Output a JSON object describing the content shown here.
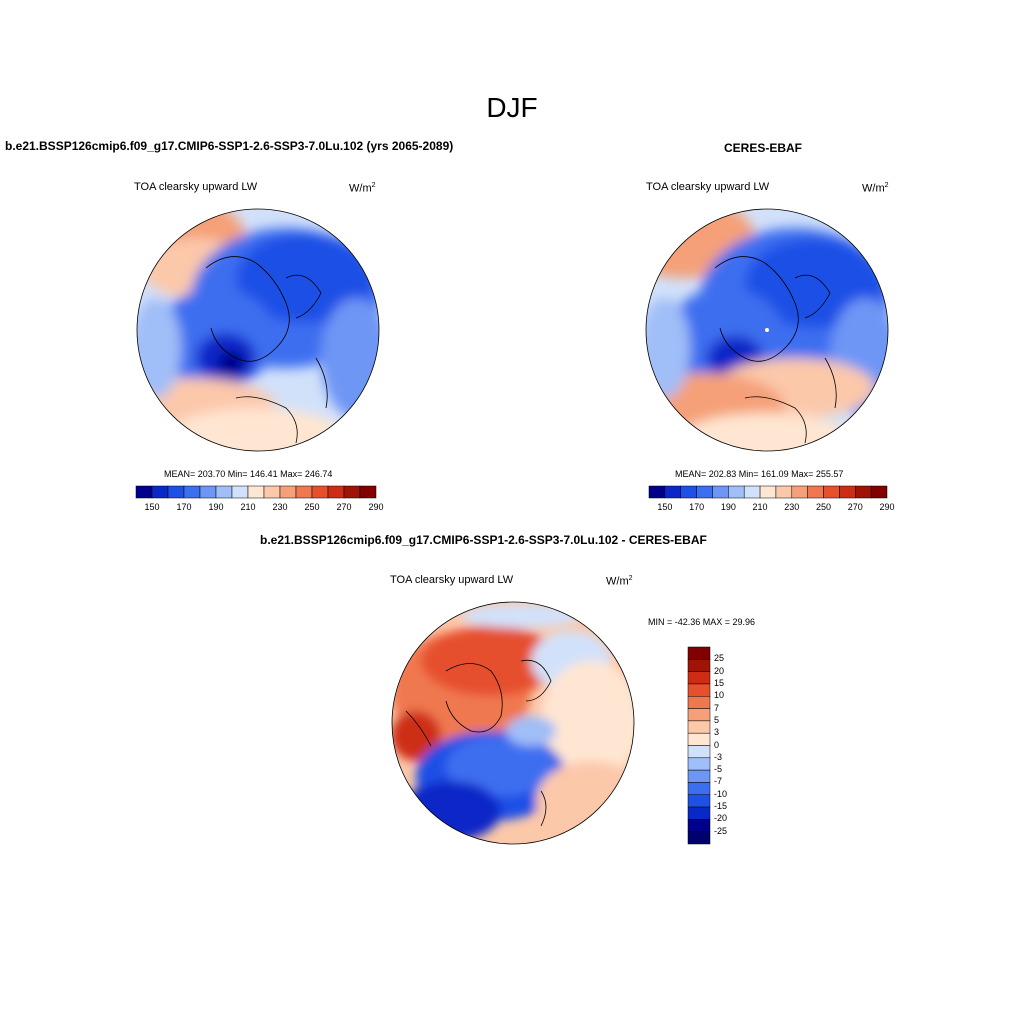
{
  "page": {
    "title": "DJF"
  },
  "panels": [
    {
      "case_title": "b.e21.BSSP126cmip6.f09_g17.CMIP6-SSP1-2.6-SSP3-7.0Lu.102 (yrs 2065-2089)",
      "field": "TOA clearsky upward LW",
      "units": "W/m",
      "units_exp": "2",
      "stats": "MEAN= 203.70  Min= 146.41  Max= 246.74",
      "colorbar_labels": [
        "150",
        "170",
        "190",
        "210",
        "230",
        "250",
        "270",
        "290"
      ]
    },
    {
      "case_title": "CERES-EBAF",
      "field": "TOA clearsky upward LW",
      "units": "W/m",
      "units_exp": "2",
      "stats": "MEAN= 202.83  Min= 161.09  Max= 255.57",
      "colorbar_labels": [
        "150",
        "170",
        "190",
        "210",
        "230",
        "250",
        "270",
        "290"
      ]
    },
    {
      "case_title": "b.e21.BSSP126cmip6.f09_g17.CMIP6-SSP1-2.6-SSP3-7.0Lu.102 - CERES-EBAF",
      "field": "TOA clearsky upward LW",
      "units": "W/m",
      "units_exp": "2",
      "stats": "MIN = -42.36 MAX =  29.96",
      "colorbar_labels": [
        "25",
        "20",
        "15",
        "10",
        "7",
        "5",
        "3",
        "0",
        "-3",
        "-5",
        "-7",
        "-10",
        "-15",
        "-20",
        "-25"
      ]
    }
  ],
  "colors": {
    "abs_scale": [
      "#00008c",
      "#0a28c8",
      "#1e50e6",
      "#3c6ef0",
      "#6e96f5",
      "#a0bef8",
      "#d2e1fa",
      "#ffe6d2",
      "#fcc8aa",
      "#f5a078",
      "#f07850",
      "#e6502d",
      "#cd2d14",
      "#a01405",
      "#820000"
    ],
    "diff_scale": [
      "#820000",
      "#a01405",
      "#cd2d14",
      "#e6502d",
      "#f07850",
      "#f5a078",
      "#fcc8aa",
      "#ffe6d2",
      "#d2e1fa",
      "#a0bef8",
      "#6e96f5",
      "#3c6ef0",
      "#1e50e6",
      "#0a28c8",
      "#00008c"
    ]
  }
}
